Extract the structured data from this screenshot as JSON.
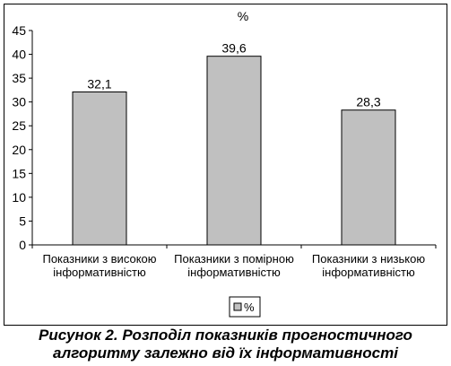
{
  "chart_data": {
    "type": "bar",
    "title": "%",
    "categories": [
      [
        "Показники з високою",
        "інформативністю"
      ],
      [
        "Показники з помірною",
        "інформативністю"
      ],
      [
        "Показники з низькою",
        "інформативністю"
      ]
    ],
    "series": [
      {
        "name": "%",
        "values": [
          32.1,
          39.6,
          28.3
        ],
        "value_labels": [
          "32,1",
          "39,6",
          "28,3"
        ],
        "color": "#c0c0c0"
      }
    ],
    "ylim": [
      0,
      45
    ],
    "ytick_step": 5,
    "yticks": [
      "0",
      "5",
      "10",
      "15",
      "20",
      "25",
      "30",
      "35",
      "40",
      "45"
    ],
    "grid": false,
    "legend_position": "bottom",
    "xlabel": "",
    "ylabel": ""
  },
  "caption": {
    "line1": "Рисунок 2. Розподіл показників прогностичного",
    "line2": "алгоритму залежно від їх інформативності"
  }
}
